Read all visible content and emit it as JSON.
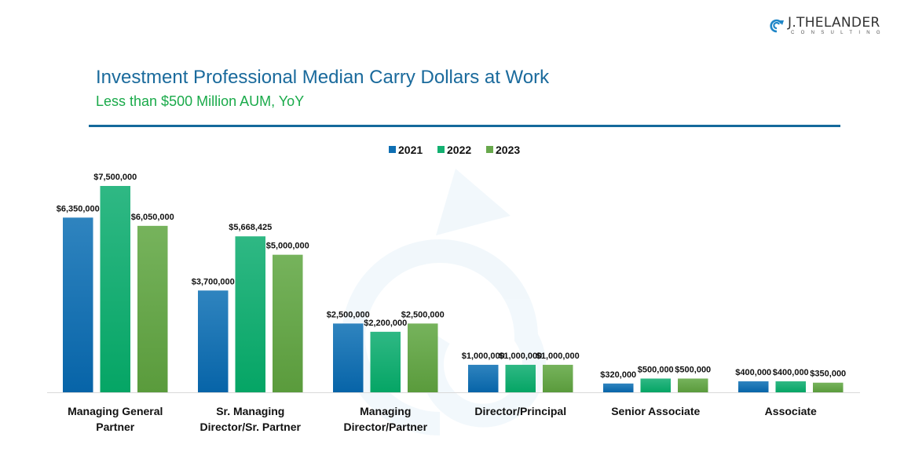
{
  "logo": {
    "name": "J.THELANDER",
    "sub": "CONSULTING"
  },
  "header": {
    "title": "Investment Professional Median Carry Dollars at Work",
    "subtitle": "Less than $500 Million AUM, YoY"
  },
  "colors": {
    "title": "#1a6a9c",
    "subtitle": "#1aaa4a",
    "rule": "#14699b",
    "s2021": "#0e6fb3",
    "s2022": "#13b071",
    "s2023": "#68a84c"
  },
  "chart_data": {
    "type": "bar",
    "title": "Investment Professional Median Carry Dollars at Work",
    "subtitle": "Less than $500 Million AUM, YoY",
    "xlabel": "",
    "ylabel": "",
    "ylim": [
      0,
      7500000
    ],
    "grid": false,
    "legend": "top-center",
    "categories": [
      [
        "Managing General",
        "Partner"
      ],
      [
        "Sr. Managing",
        "Director/Sr. Partner"
      ],
      [
        "Managing",
        "Director/Partner"
      ],
      [
        "Director/Principal"
      ],
      [
        "Senior Associate"
      ],
      [
        "Associate"
      ]
    ],
    "series": [
      {
        "name": "2021",
        "color": "#0e6fb3",
        "values": [
          6350000,
          3700000,
          2500000,
          1000000,
          320000,
          400000
        ],
        "labels": [
          "$6,350,000",
          "$3,700,000",
          "$2,500,000",
          "$1,000,000",
          "$320,000",
          "$400,000"
        ]
      },
      {
        "name": "2022",
        "color": "#13b071",
        "values": [
          7500000,
          5668425,
          2200000,
          1000000,
          500000,
          400000
        ],
        "labels": [
          "$7,500,000",
          "$5,668,425",
          "$2,200,000",
          "$1,000,000",
          "$500,000",
          "$400,000"
        ]
      },
      {
        "name": "2023",
        "color": "#68a84c",
        "values": [
          6050000,
          5000000,
          2500000,
          1000000,
          500000,
          350000
        ],
        "labels": [
          "$6,050,000",
          "$5,000,000",
          "$2,500,000",
          "$1,000,000",
          "$500,000",
          "$350,000"
        ]
      }
    ]
  }
}
